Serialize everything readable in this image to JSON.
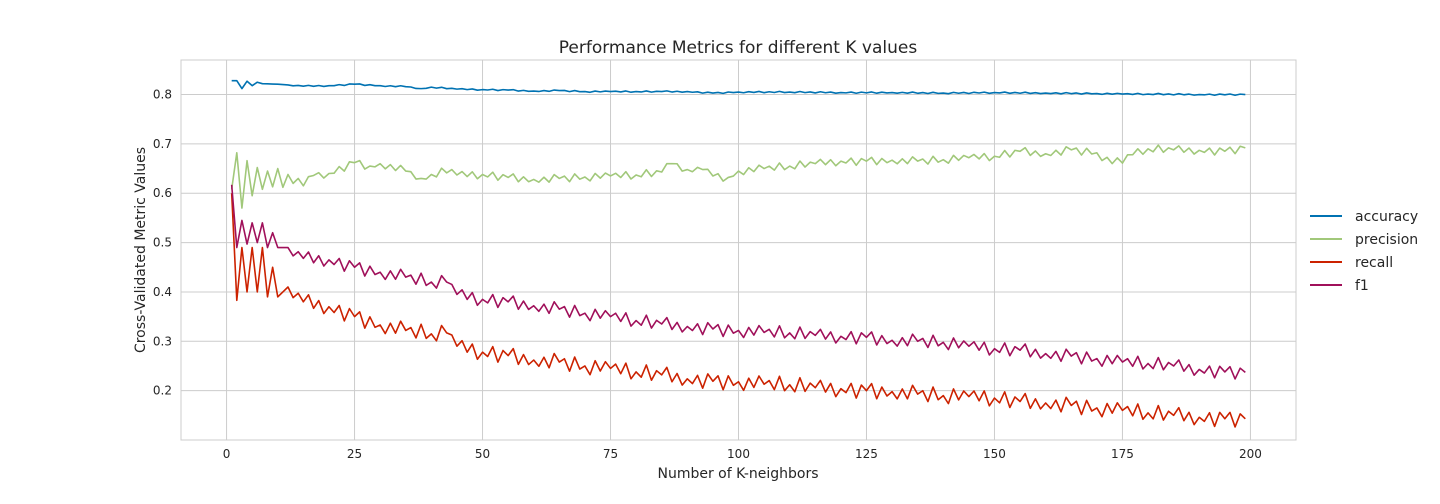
{
  "chart_data": {
    "type": "line",
    "title": "Performance Metrics for different K values",
    "xlabel": "Number of K-neighbors",
    "ylabel": "Cross-Validated Metric Values",
    "xlim": [
      -8.9,
      208.9
    ],
    "ylim": [
      0.1,
      0.87
    ],
    "xticks": [
      0,
      25,
      50,
      75,
      100,
      125,
      150,
      175,
      200
    ],
    "yticks": [
      0.2,
      0.3,
      0.4,
      0.5,
      0.6,
      0.7,
      0.8
    ],
    "x": {
      "start": 1,
      "end": 199,
      "step": 1
    },
    "grid": true,
    "legend_position": "right",
    "series": [
      {
        "name": "accuracy",
        "color": "#0072b2",
        "anchors": [
          [
            1,
            0.828
          ],
          [
            2,
            0.828
          ],
          [
            3,
            0.812
          ],
          [
            4,
            0.827
          ],
          [
            5,
            0.818
          ],
          [
            6,
            0.825
          ],
          [
            7,
            0.822
          ],
          [
            10,
            0.821
          ],
          [
            15,
            0.817
          ],
          [
            20,
            0.818
          ],
          [
            25,
            0.821
          ],
          [
            30,
            0.818
          ],
          [
            35,
            0.816
          ],
          [
            38,
            0.812
          ],
          [
            40,
            0.815
          ],
          [
            45,
            0.811
          ],
          [
            50,
            0.81
          ],
          [
            55,
            0.809
          ],
          [
            60,
            0.807
          ],
          [
            65,
            0.808
          ],
          [
            70,
            0.806
          ],
          [
            75,
            0.806
          ],
          [
            80,
            0.806
          ],
          [
            85,
            0.806
          ],
          [
            90,
            0.806
          ],
          [
            95,
            0.803
          ],
          [
            100,
            0.805
          ],
          [
            110,
            0.805
          ],
          [
            120,
            0.804
          ],
          [
            130,
            0.804
          ],
          [
            140,
            0.803
          ],
          [
            150,
            0.804
          ],
          [
            160,
            0.803
          ],
          [
            170,
            0.802
          ],
          [
            175,
            0.801
          ],
          [
            180,
            0.801
          ],
          [
            190,
            0.8
          ],
          [
            199,
            0.8
          ]
        ]
      },
      {
        "name": "precision",
        "color": "#a1c87a",
        "anchors": [
          [
            1,
            0.608
          ],
          [
            2,
            0.682
          ],
          [
            3,
            0.57
          ],
          [
            4,
            0.666
          ],
          [
            5,
            0.595
          ],
          [
            6,
            0.652
          ],
          [
            7,
            0.608
          ],
          [
            8,
            0.645
          ],
          [
            9,
            0.613
          ],
          [
            10,
            0.65
          ],
          [
            11,
            0.612
          ],
          [
            12,
            0.638
          ],
          [
            13,
            0.62
          ],
          [
            14,
            0.63
          ],
          [
            15,
            0.615
          ],
          [
            17,
            0.636
          ],
          [
            20,
            0.64
          ],
          [
            25,
            0.662
          ],
          [
            28,
            0.655
          ],
          [
            30,
            0.66
          ],
          [
            35,
            0.645
          ],
          [
            38,
            0.63
          ],
          [
            40,
            0.638
          ],
          [
            44,
            0.648
          ],
          [
            45,
            0.637
          ],
          [
            50,
            0.638
          ],
          [
            55,
            0.632
          ],
          [
            60,
            0.628
          ],
          [
            65,
            0.63
          ],
          [
            70,
            0.633
          ],
          [
            75,
            0.635
          ],
          [
            80,
            0.637
          ],
          [
            85,
            0.643
          ],
          [
            87,
            0.66
          ],
          [
            90,
            0.648
          ],
          [
            93,
            0.648
          ],
          [
            95,
            0.635
          ],
          [
            98,
            0.632
          ],
          [
            100,
            0.645
          ],
          [
            105,
            0.65
          ],
          [
            110,
            0.655
          ],
          [
            115,
            0.66
          ],
          [
            120,
            0.665
          ],
          [
            125,
            0.665
          ],
          [
            130,
            0.667
          ],
          [
            135,
            0.665
          ],
          [
            140,
            0.668
          ],
          [
            145,
            0.672
          ],
          [
            150,
            0.675
          ],
          [
            155,
            0.685
          ],
          [
            160,
            0.68
          ],
          [
            165,
            0.688
          ],
          [
            170,
            0.682
          ],
          [
            173,
            0.66
          ],
          [
            177,
            0.678
          ],
          [
            180,
            0.69
          ],
          [
            185,
            0.688
          ],
          [
            190,
            0.687
          ],
          [
            195,
            0.685
          ],
          [
            199,
            0.692
          ]
        ]
      },
      {
        "name": "recall",
        "color": "#cc2200",
        "anchors": [
          [
            1,
            0.6
          ],
          [
            2,
            0.383
          ],
          [
            3,
            0.49
          ],
          [
            4,
            0.4
          ],
          [
            5,
            0.49
          ],
          [
            6,
            0.4
          ],
          [
            7,
            0.49
          ],
          [
            8,
            0.39
          ],
          [
            9,
            0.45
          ],
          [
            10,
            0.39
          ],
          [
            12,
            0.41
          ],
          [
            15,
            0.38
          ],
          [
            20,
            0.37
          ],
          [
            25,
            0.35
          ],
          [
            30,
            0.333
          ],
          [
            35,
            0.322
          ],
          [
            40,
            0.315
          ],
          [
            43,
            0.317
          ],
          [
            45,
            0.29
          ],
          [
            50,
            0.278
          ],
          [
            55,
            0.271
          ],
          [
            60,
            0.262
          ],
          [
            65,
            0.258
          ],
          [
            70,
            0.25
          ],
          [
            75,
            0.245
          ],
          [
            80,
            0.238
          ],
          [
            85,
            0.232
          ],
          [
            90,
            0.224
          ],
          [
            95,
            0.219
          ],
          [
            100,
            0.218
          ],
          [
            105,
            0.213
          ],
          [
            110,
            0.212
          ],
          [
            115,
            0.206
          ],
          [
            120,
            0.204
          ],
          [
            125,
            0.2
          ],
          [
            130,
            0.198
          ],
          [
            135,
            0.193
          ],
          [
            140,
            0.19
          ],
          [
            145,
            0.188
          ],
          [
            150,
            0.185
          ],
          [
            155,
            0.178
          ],
          [
            160,
            0.175
          ],
          [
            165,
            0.17
          ],
          [
            170,
            0.165
          ],
          [
            175,
            0.16
          ],
          [
            180,
            0.155
          ],
          [
            185,
            0.15
          ],
          [
            190,
            0.146
          ],
          [
            195,
            0.143
          ],
          [
            199,
            0.143
          ]
        ]
      },
      {
        "name": "f1",
        "color": "#a0105a",
        "anchors": [
          [
            1,
            0.617
          ],
          [
            2,
            0.49
          ],
          [
            3,
            0.545
          ],
          [
            4,
            0.497
          ],
          [
            5,
            0.54
          ],
          [
            6,
            0.5
          ],
          [
            7,
            0.54
          ],
          [
            8,
            0.49
          ],
          [
            9,
            0.52
          ],
          [
            10,
            0.49
          ],
          [
            12,
            0.49
          ],
          [
            15,
            0.468
          ],
          [
            20,
            0.465
          ],
          [
            25,
            0.45
          ],
          [
            30,
            0.44
          ],
          [
            35,
            0.43
          ],
          [
            40,
            0.42
          ],
          [
            43,
            0.42
          ],
          [
            45,
            0.395
          ],
          [
            50,
            0.385
          ],
          [
            55,
            0.38
          ],
          [
            60,
            0.372
          ],
          [
            65,
            0.365
          ],
          [
            70,
            0.357
          ],
          [
            75,
            0.35
          ],
          [
            80,
            0.342
          ],
          [
            85,
            0.335
          ],
          [
            90,
            0.33
          ],
          [
            95,
            0.325
          ],
          [
            100,
            0.322
          ],
          [
            105,
            0.318
          ],
          [
            110,
            0.317
          ],
          [
            115,
            0.312
          ],
          [
            120,
            0.31
          ],
          [
            125,
            0.308
          ],
          [
            130,
            0.302
          ],
          [
            135,
            0.3
          ],
          [
            140,
            0.298
          ],
          [
            145,
            0.29
          ],
          [
            150,
            0.285
          ],
          [
            155,
            0.282
          ],
          [
            160,
            0.275
          ],
          [
            165,
            0.27
          ],
          [
            170,
            0.265
          ],
          [
            175,
            0.258
          ],
          [
            180,
            0.255
          ],
          [
            185,
            0.25
          ],
          [
            190,
            0.243
          ],
          [
            195,
            0.238
          ],
          [
            199,
            0.237
          ]
        ]
      }
    ]
  }
}
